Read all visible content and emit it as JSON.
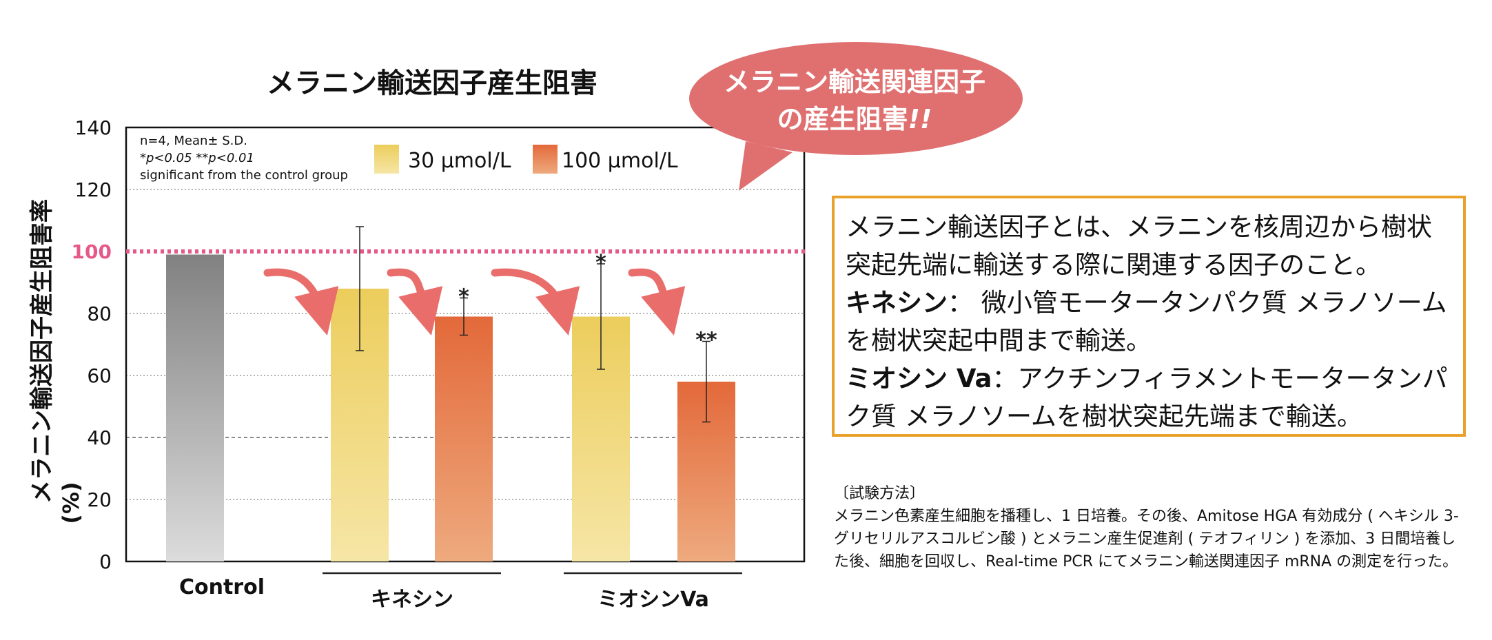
{
  "chart_data": {
    "type": "bar",
    "title": "メラニン輸送因子産生阻害",
    "ylabel": "メラニン輸送因子産生阻害率",
    "ylabel_unit": "(%)",
    "ylim": [
      0,
      140
    ],
    "yticks": [
      "0",
      "20",
      "40",
      "60",
      "80",
      "100",
      "120",
      "140"
    ],
    "reference_line": {
      "value": 100,
      "label": "100",
      "color": "#e5598a"
    },
    "note_lines": [
      "n=4, Mean± S.D.",
      "*p<0.05 **p<0.01",
      "significant from the control group"
    ],
    "legend": [
      {
        "name": "30 µmol/L",
        "color_top": "#eccd5c",
        "color_bottom": "#f6e6a6"
      },
      {
        "name": "100 µmol/L",
        "color_top": "#e3693a",
        "color_bottom": "#eeaa7e"
      }
    ],
    "groups": [
      {
        "label": "Control",
        "underline": false
      },
      {
        "label": "キネシン",
        "underline": true
      },
      {
        "label": "ミオシンVa",
        "underline": true
      }
    ],
    "bars": [
      {
        "group": 0,
        "series": "Control",
        "value": 99,
        "error": 0,
        "sig": ""
      },
      {
        "group": 1,
        "series": "30 µmol/L",
        "value": 88,
        "error": 20,
        "sig": ""
      },
      {
        "group": 1,
        "series": "100 µmol/L",
        "value": 79,
        "error": 6,
        "sig": "*"
      },
      {
        "group": 2,
        "series": "30 µmol/L",
        "value": 79,
        "error": 17,
        "sig": "*"
      },
      {
        "group": 2,
        "series": "100 µmol/L",
        "value": 58,
        "error": 13,
        "sig": "**"
      }
    ],
    "colors": {
      "control_top": "#818181",
      "control_bottom": "#dcdcdc",
      "arrow": "#e96d6b",
      "callout": "#e07070",
      "axis": "#111111"
    }
  },
  "callout": {
    "line1": "メラニン輸送関連因子",
    "line2": "の産生阻害",
    "emphasis": "!!"
  },
  "info": {
    "intro": "メラニン輸送因子とは、メラニンを核周辺から樹状突起先端に輸送する際に関連する因子のこと。",
    "kinesin_term": "キネシン",
    "kinesin_desc": "： 微小管モータータンパク質 メラノソームを樹状突起中間まで輸送。",
    "myosin_term": "ミオシン Va",
    "myosin_desc": "：アクチンフィラメントモータータンパク質 メラノソームを樹状突起先端まで輸送。"
  },
  "method": {
    "heading": "〔試験方法〕",
    "body": "メラニン色素産生細胞を播種し、1 日培養。その後、Amitose HGA 有効成分 ( ヘキシル 3- グリセリルアスコルビン酸 ) とメラニン産生促進剤 ( テオフィリン ) を添加、3 日間培養した後、細胞を回収し、Real-time PCR にてメラニン輸送関連因子 mRNA の測定を行った。"
  }
}
